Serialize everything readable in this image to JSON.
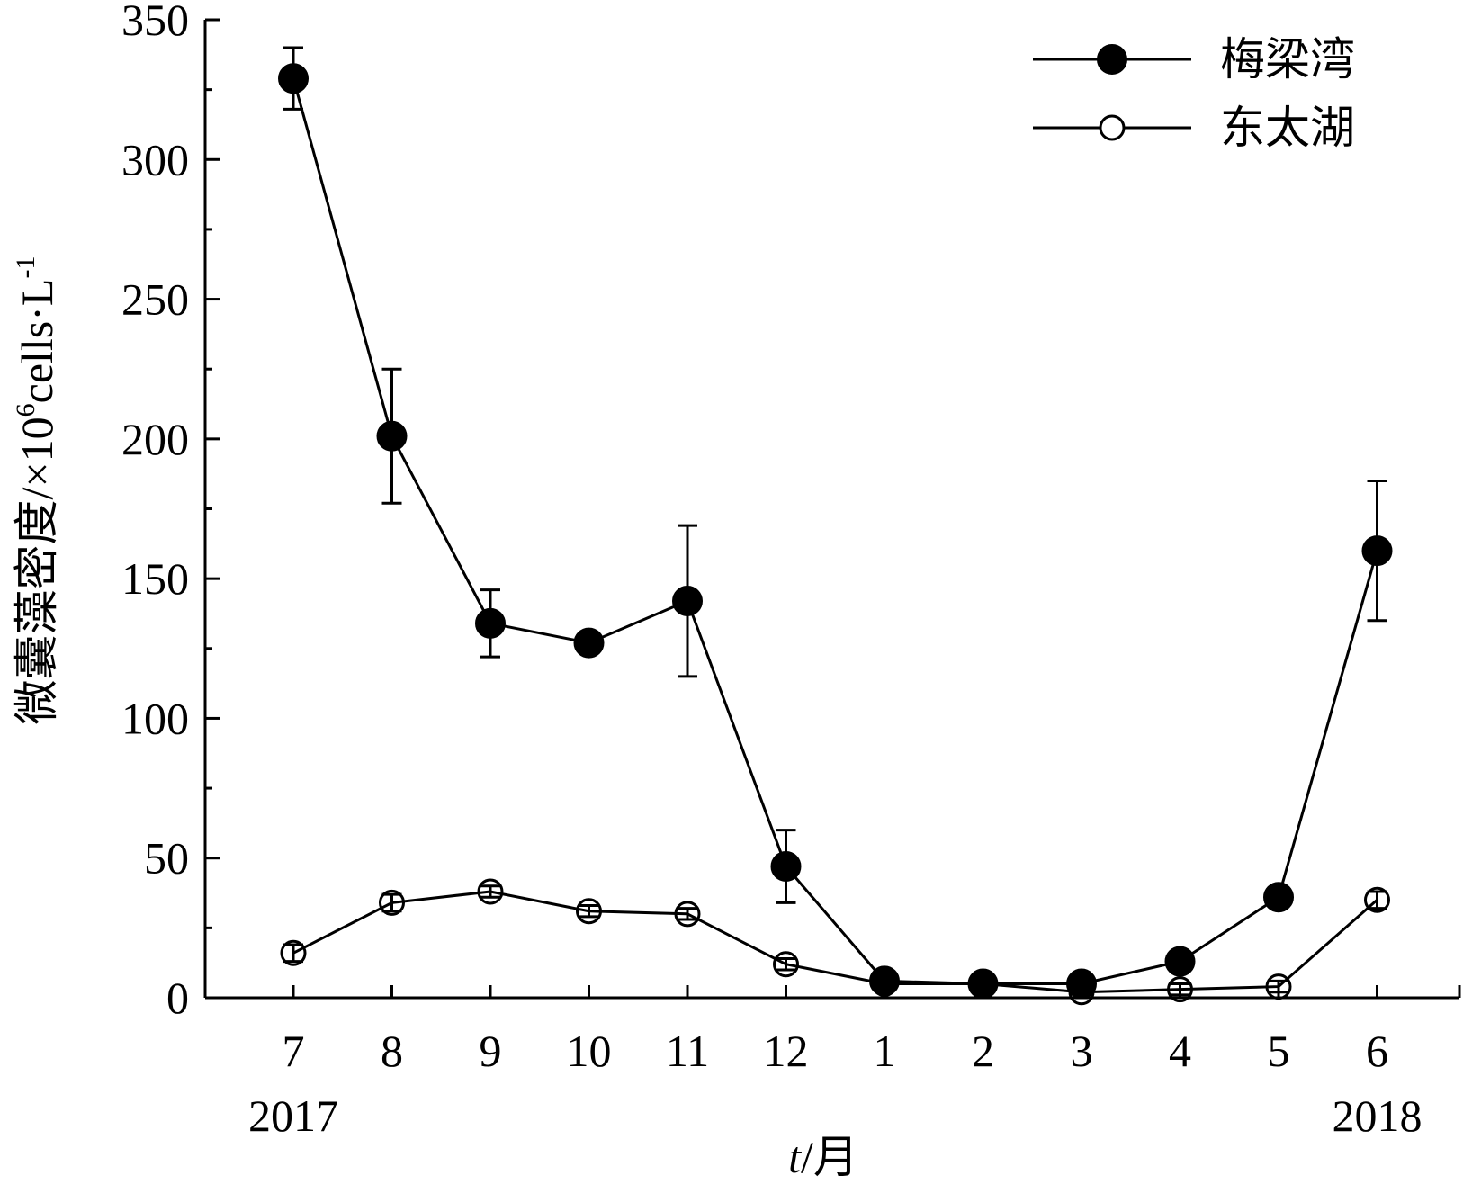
{
  "chart_data": {
    "type": "line",
    "title": "",
    "xlabel_italic": "t",
    "xlabel_rest": "/月",
    "ylabel": "微囊藻密度/×10",
    "ylabel_sup": "6",
    "ylabel_unit": "cells·L",
    "ylabel_unit_sup": "-1",
    "categories": [
      "7",
      "8",
      "9",
      "10",
      "11",
      "12",
      "1",
      "2",
      "3",
      "4",
      "5",
      "6"
    ],
    "year_labels": [
      {
        "category_index": 0,
        "text": "2017"
      },
      {
        "category_index": 11,
        "text": "2018"
      }
    ],
    "ylim": [
      0,
      350
    ],
    "yticks": [
      0,
      50,
      100,
      150,
      200,
      250,
      300,
      350
    ],
    "grid": false,
    "legend_position": "top-right",
    "series": [
      {
        "name": "梅梁湾",
        "marker": "filled-circle",
        "values": [
          329,
          201,
          134,
          127,
          142,
          47,
          6,
          5,
          5,
          13,
          36,
          160
        ],
        "error": [
          11,
          24,
          12,
          0,
          27,
          13,
          0,
          0,
          0,
          0,
          0,
          25
        ]
      },
      {
        "name": "东太湖",
        "marker": "open-circle",
        "values": [
          16,
          34,
          38,
          31,
          30,
          12,
          5,
          5,
          2,
          3,
          4,
          35
        ],
        "error": [
          3,
          3,
          2,
          2,
          2,
          2,
          0,
          0,
          0,
          2,
          2,
          3
        ]
      }
    ]
  }
}
